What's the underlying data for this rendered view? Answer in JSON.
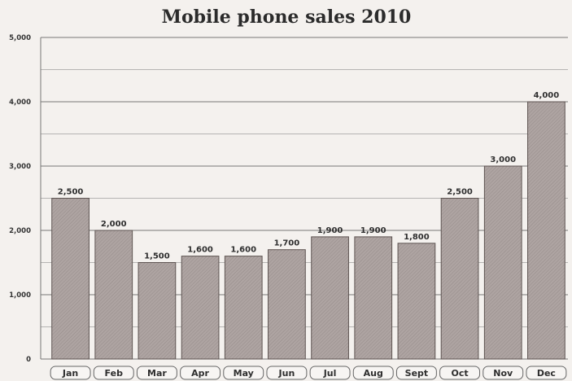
{
  "chart_data": {
    "type": "bar",
    "title": "Mobile phone sales 2010",
    "xlabel": "",
    "ylabel": "",
    "categories": [
      "Jan",
      "Feb",
      "Mar",
      "Apr",
      "May",
      "Jun",
      "Jul",
      "Aug",
      "Sept",
      "Oct",
      "Nov",
      "Dec"
    ],
    "values": [
      2500,
      2000,
      1500,
      1600,
      1600,
      1700,
      1900,
      1900,
      1800,
      2500,
      3000,
      4000
    ],
    "data_labels": [
      "2,500",
      "2,000",
      "1,500",
      "1,600",
      "1,600",
      "1,700",
      "1,900",
      "1,900",
      "1,800",
      "2,500",
      "3,000",
      "4,000"
    ],
    "y_ticks": [
      0,
      1000,
      2000,
      3000,
      4000,
      5000
    ],
    "y_tick_labels": [
      "0",
      "1,000",
      "2,000",
      "3,000",
      "4,000",
      "5,000"
    ],
    "ylim": [
      0,
      5000
    ],
    "grid": true,
    "colors": {
      "bar": "#a89e9c",
      "bar_stroke": "#5e5452",
      "grid": "#6a6a6a"
    }
  }
}
